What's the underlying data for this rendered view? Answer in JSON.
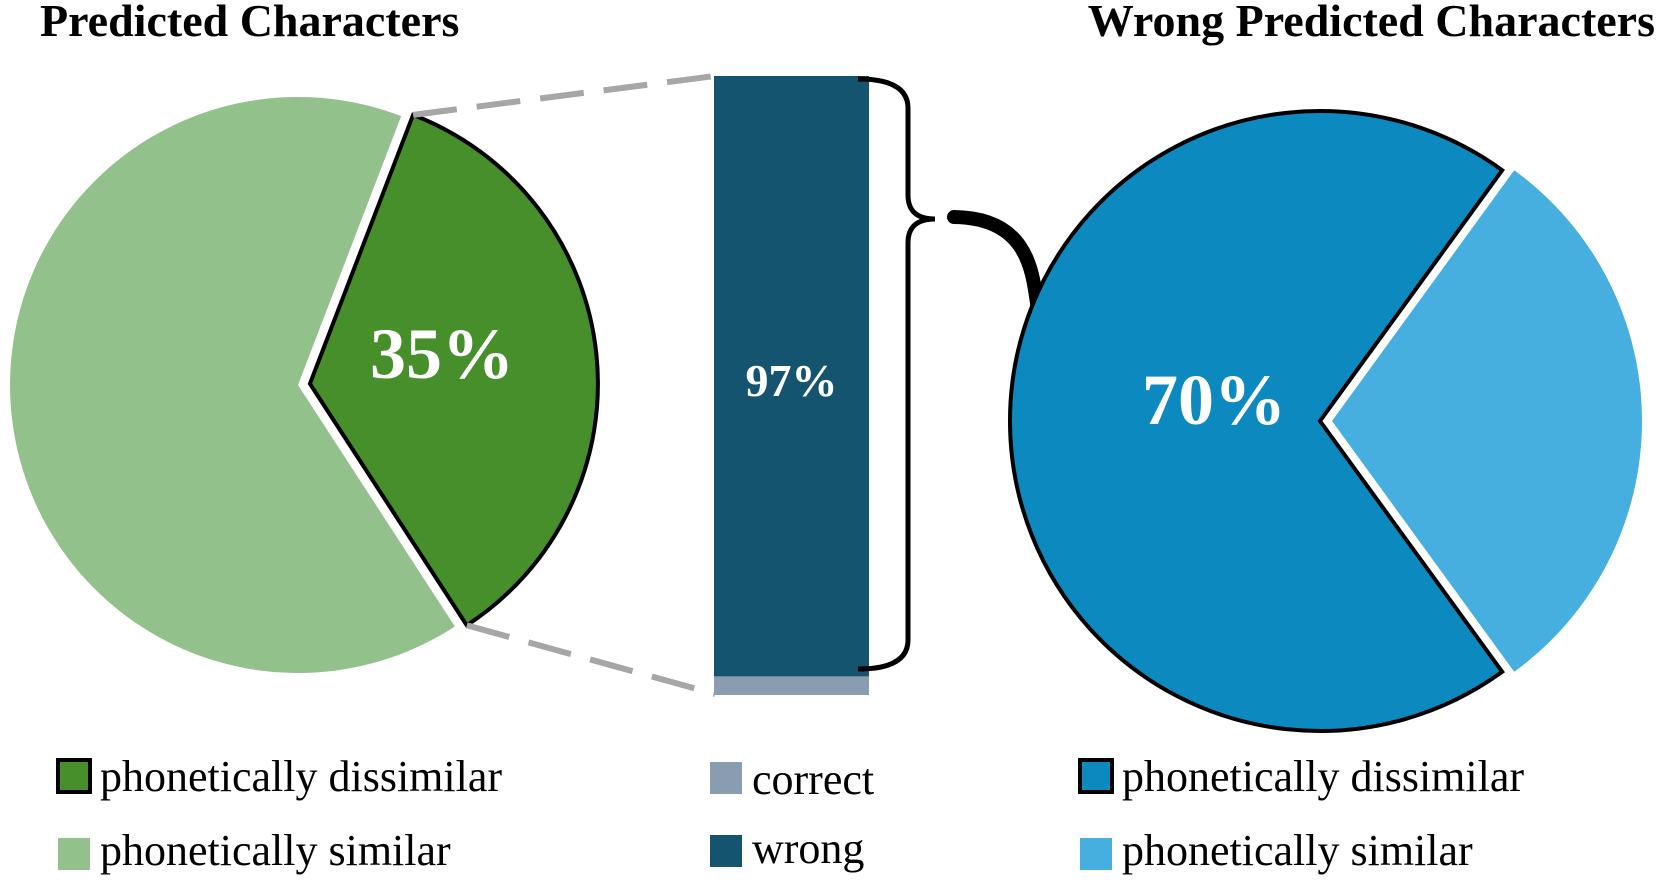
{
  "chart_data": [
    {
      "type": "pie",
      "title": "Predicted Characters",
      "slices": [
        {
          "label": "phonetically dissimilar",
          "value": 35,
          "color": "#468f2a",
          "label_text": "35%",
          "exploded": true,
          "outlined": true
        },
        {
          "label": "phonetically similar",
          "value": 65,
          "color": "#93c18b"
        }
      ]
    },
    {
      "type": "bar",
      "stacked": true,
      "categories": [
        ""
      ],
      "series": [
        {
          "name": "correct",
          "values": [
            3
          ],
          "color": "#8a9db0"
        },
        {
          "name": "wrong",
          "values": [
            97
          ],
          "color": "#14546f",
          "label_text": "97%"
        }
      ],
      "ylim": [
        0,
        100
      ]
    },
    {
      "type": "pie",
      "title": "Wrong Predicted Characters",
      "slices": [
        {
          "label": "phonetically dissimilar",
          "value": 70,
          "color": "#0c8abf",
          "label_text": "70%",
          "outlined": true
        },
        {
          "label": "phonetically similar",
          "value": 30,
          "color": "#46afe0",
          "exploded": true
        }
      ]
    }
  ],
  "colors": {
    "connector": "#a6a6a6",
    "outline": "#000000",
    "background": "#ffffff"
  }
}
